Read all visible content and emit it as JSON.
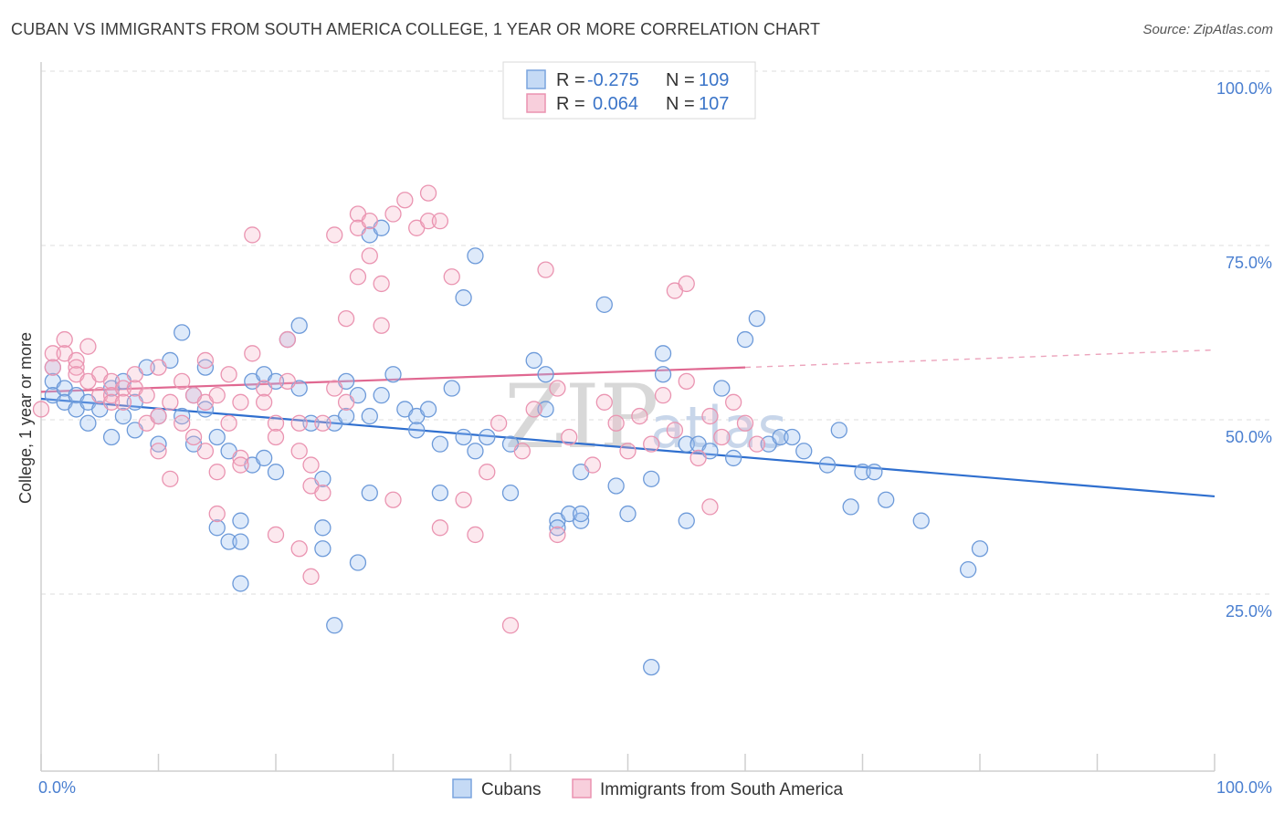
{
  "title": "CUBAN VS IMMIGRANTS FROM SOUTH AMERICA COLLEGE, 1 YEAR OR MORE CORRELATION CHART",
  "source": "Source: ZipAtlas.com",
  "watermark": {
    "zip": "ZIP",
    "atlas": "atlas"
  },
  "colors": {
    "blue": "#5b8fd6",
    "blue_line": "#2f6fcf",
    "pink": "#e98aa8",
    "pink_line": "#e06891",
    "axis_text": "#4a7fd0"
  },
  "legend_top": {
    "rows": [
      {
        "r_label": "R =",
        "r_value": "-0.275",
        "n_label": "N =",
        "n_value": "109"
      },
      {
        "r_label": "R =",
        "r_value": "0.064",
        "n_label": "N =",
        "n_value": "107"
      }
    ]
  },
  "legend_bottom": {
    "items": [
      "Cubans",
      "Immigrants from South America"
    ]
  },
  "chart_data": {
    "type": "scatter",
    "xlabel": "",
    "ylabel": "College, 1 year or more",
    "xlim": [
      0,
      100
    ],
    "ylim": [
      0,
      105
    ],
    "x_tick_labels": [
      "0.0%",
      "100.0%"
    ],
    "y_tick_labels": [
      "25.0%",
      "50.0%",
      "75.0%",
      "100.0%"
    ],
    "y_ticks": [
      25,
      50,
      75,
      100
    ],
    "grid": "dashed horizontal",
    "legend_position": "top-center",
    "series": [
      {
        "name": "Cubans",
        "r": -0.275,
        "n": 109,
        "trend": {
          "x0": 0,
          "y0": 55.5,
          "x1": 100,
          "y1": 41.5,
          "dash_from": 100
        },
        "points": [
          [
            1,
            60
          ],
          [
            1,
            58
          ],
          [
            1,
            56
          ],
          [
            2,
            57
          ],
          [
            2,
            55
          ],
          [
            3,
            56
          ],
          [
            3,
            54
          ],
          [
            4,
            55
          ],
          [
            4,
            52
          ],
          [
            5,
            54
          ],
          [
            6,
            57
          ],
          [
            6,
            50
          ],
          [
            7,
            53
          ],
          [
            7,
            58
          ],
          [
            8,
            51
          ],
          [
            8,
            55
          ],
          [
            9,
            60
          ],
          [
            10,
            49
          ],
          [
            10,
            53
          ],
          [
            11,
            61
          ],
          [
            12,
            65
          ],
          [
            12,
            53
          ],
          [
            13,
            56
          ],
          [
            13,
            49
          ],
          [
            14,
            60
          ],
          [
            14,
            54
          ],
          [
            15,
            37
          ],
          [
            15,
            50
          ],
          [
            16,
            35
          ],
          [
            16,
            48
          ],
          [
            17,
            35
          ],
          [
            17,
            29
          ],
          [
            17,
            38
          ],
          [
            18,
            58
          ],
          [
            18,
            46
          ],
          [
            19,
            47
          ],
          [
            19,
            59
          ],
          [
            20,
            58
          ],
          [
            20,
            45
          ],
          [
            21,
            64
          ],
          [
            22,
            66
          ],
          [
            22,
            57
          ],
          [
            23,
            52
          ],
          [
            24,
            37
          ],
          [
            24,
            34
          ],
          [
            24,
            44
          ],
          [
            25,
            23
          ],
          [
            25,
            52
          ],
          [
            26,
            58
          ],
          [
            26,
            53
          ],
          [
            27,
            32
          ],
          [
            27,
            56
          ],
          [
            28,
            53
          ],
          [
            28,
            42
          ],
          [
            28,
            79
          ],
          [
            29,
            80
          ],
          [
            29,
            56
          ],
          [
            30,
            59
          ],
          [
            31,
            54
          ],
          [
            32,
            53
          ],
          [
            32,
            51
          ],
          [
            33,
            54
          ],
          [
            34,
            49
          ],
          [
            34,
            42
          ],
          [
            35,
            57
          ],
          [
            36,
            70
          ],
          [
            36,
            50
          ],
          [
            37,
            48
          ],
          [
            37,
            76
          ],
          [
            38,
            50
          ],
          [
            40,
            49
          ],
          [
            40,
            42
          ],
          [
            42,
            61
          ],
          [
            43,
            54
          ],
          [
            43,
            59
          ],
          [
            44,
            38
          ],
          [
            44,
            37
          ],
          [
            45,
            39
          ],
          [
            46,
            45
          ],
          [
            46,
            38
          ],
          [
            46,
            39
          ],
          [
            48,
            69
          ],
          [
            49,
            43
          ],
          [
            50,
            39
          ],
          [
            52,
            17
          ],
          [
            52,
            44
          ],
          [
            53,
            62
          ],
          [
            53,
            59
          ],
          [
            55,
            49
          ],
          [
            55,
            38
          ],
          [
            56,
            49
          ],
          [
            57,
            48
          ],
          [
            58,
            57
          ],
          [
            59,
            47
          ],
          [
            60,
            64
          ],
          [
            61,
            67
          ],
          [
            62,
            49
          ],
          [
            63,
            50
          ],
          [
            64,
            50
          ],
          [
            65,
            48
          ],
          [
            67,
            46
          ],
          [
            68,
            51
          ],
          [
            69,
            40
          ],
          [
            70,
            45
          ],
          [
            71,
            45
          ],
          [
            72,
            41
          ],
          [
            75,
            38
          ],
          [
            79,
            31
          ],
          [
            80,
            34
          ]
        ]
      },
      {
        "name": "Immigrants from South America",
        "r": 0.064,
        "n": 107,
        "trend": {
          "x0": 0,
          "y0": 56.5,
          "x1": 60,
          "y1": 60,
          "x2": 100,
          "y2": 62.5,
          "dash_from": 60
        },
        "points": [
          [
            0,
            54
          ],
          [
            1,
            62
          ],
          [
            1,
            60
          ],
          [
            2,
            64
          ],
          [
            2,
            62
          ],
          [
            3,
            61
          ],
          [
            3,
            60
          ],
          [
            3,
            59
          ],
          [
            4,
            63
          ],
          [
            4,
            58
          ],
          [
            5,
            59
          ],
          [
            5,
            56
          ],
          [
            6,
            58
          ],
          [
            6,
            56
          ],
          [
            6,
            55
          ],
          [
            7,
            57
          ],
          [
            7,
            55
          ],
          [
            8,
            59
          ],
          [
            8,
            57
          ],
          [
            9,
            56
          ],
          [
            9,
            52
          ],
          [
            10,
            60
          ],
          [
            10,
            53
          ],
          [
            10,
            48
          ],
          [
            11,
            55
          ],
          [
            11,
            44
          ],
          [
            12,
            58
          ],
          [
            12,
            52
          ],
          [
            13,
            56
          ],
          [
            13,
            50
          ],
          [
            14,
            61
          ],
          [
            14,
            55
          ],
          [
            14,
            48
          ],
          [
            15,
            56
          ],
          [
            15,
            45
          ],
          [
            15,
            39
          ],
          [
            16,
            59
          ],
          [
            16,
            52
          ],
          [
            17,
            55
          ],
          [
            17,
            47
          ],
          [
            17,
            46
          ],
          [
            18,
            79
          ],
          [
            18,
            62
          ],
          [
            19,
            57
          ],
          [
            19,
            55
          ],
          [
            20,
            52
          ],
          [
            20,
            50
          ],
          [
            20,
            36
          ],
          [
            21,
            64
          ],
          [
            21,
            58
          ],
          [
            22,
            52
          ],
          [
            22,
            48
          ],
          [
            22,
            34
          ],
          [
            23,
            46
          ],
          [
            23,
            43
          ],
          [
            23,
            30
          ],
          [
            24,
            52
          ],
          [
            24,
            42
          ],
          [
            25,
            79
          ],
          [
            25,
            57
          ],
          [
            26,
            67
          ],
          [
            26,
            55
          ],
          [
            27,
            82
          ],
          [
            27,
            73
          ],
          [
            27,
            80
          ],
          [
            28,
            76
          ],
          [
            28,
            81
          ],
          [
            29,
            72
          ],
          [
            29,
            66
          ],
          [
            30,
            82
          ],
          [
            30,
            41
          ],
          [
            31,
            84
          ],
          [
            32,
            80
          ],
          [
            33,
            85
          ],
          [
            33,
            81
          ],
          [
            34,
            81
          ],
          [
            34,
            37
          ],
          [
            35,
            73
          ],
          [
            36,
            41
          ],
          [
            37,
            36
          ],
          [
            40,
            23
          ],
          [
            43,
            74
          ],
          [
            44,
            36
          ],
          [
            54,
            71
          ],
          [
            55,
            72
          ],
          [
            57,
            40
          ],
          [
            38,
            45
          ],
          [
            39,
            52
          ],
          [
            41,
            48
          ],
          [
            42,
            54
          ],
          [
            44,
            57
          ],
          [
            45,
            50
          ],
          [
            47,
            46
          ],
          [
            48,
            55
          ],
          [
            49,
            52
          ],
          [
            50,
            48
          ],
          [
            51,
            53
          ],
          [
            52,
            49
          ],
          [
            53,
            56
          ],
          [
            54,
            51
          ],
          [
            55,
            58
          ],
          [
            56,
            47
          ],
          [
            57,
            53
          ],
          [
            58,
            50
          ],
          [
            59,
            55
          ],
          [
            60,
            52
          ],
          [
            61,
            49
          ]
        ]
      }
    ]
  }
}
